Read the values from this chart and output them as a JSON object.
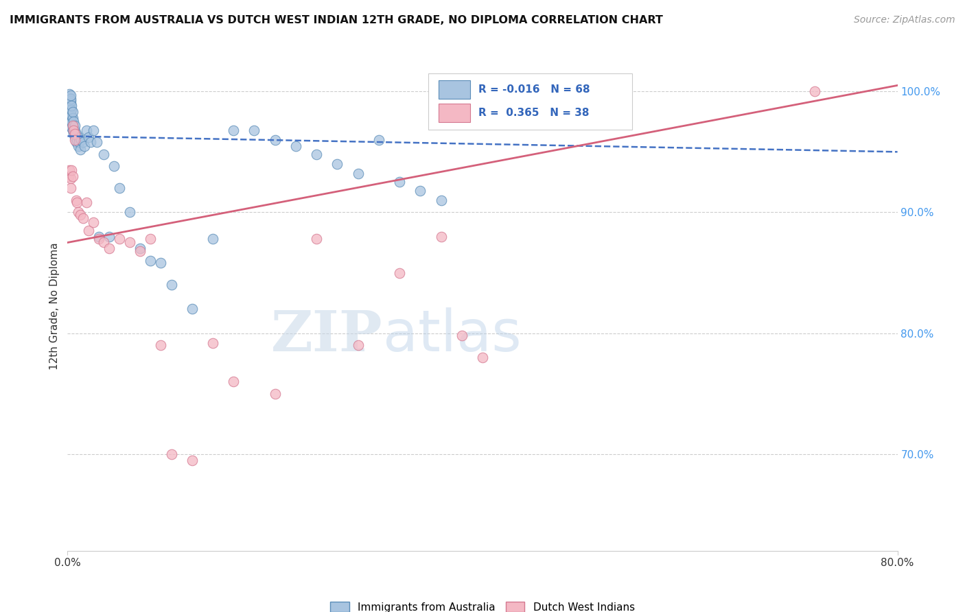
{
  "title": "IMMIGRANTS FROM AUSTRALIA VS DUTCH WEST INDIAN 12TH GRADE, NO DIPLOMA CORRELATION CHART",
  "source": "Source: ZipAtlas.com",
  "ylabel": "12th Grade, No Diploma",
  "yticks": [
    "100.0%",
    "90.0%",
    "80.0%",
    "70.0%"
  ],
  "ytick_vals": [
    1.0,
    0.9,
    0.8,
    0.7
  ],
  "xlim": [
    0.0,
    0.8
  ],
  "ylim": [
    0.62,
    1.025
  ],
  "watermark_zip": "ZIP",
  "watermark_atlas": "atlas",
  "legend_r_australia": "-0.016",
  "legend_n_australia": "68",
  "legend_r_dutch": "0.365",
  "legend_n_dutch": "38",
  "blue_color": "#a8c4e0",
  "blue_edge_color": "#5b8db8",
  "blue_line_color": "#4472c4",
  "pink_color": "#f4b8c4",
  "pink_edge_color": "#d47890",
  "pink_line_color": "#d4607a",
  "blue_scatter_x": [
    0.001,
    0.001,
    0.001,
    0.002,
    0.002,
    0.002,
    0.002,
    0.002,
    0.003,
    0.003,
    0.003,
    0.003,
    0.003,
    0.003,
    0.003,
    0.004,
    0.004,
    0.004,
    0.004,
    0.004,
    0.005,
    0.005,
    0.005,
    0.005,
    0.006,
    0.006,
    0.006,
    0.007,
    0.007,
    0.007,
    0.008,
    0.008,
    0.009,
    0.01,
    0.01,
    0.011,
    0.012,
    0.013,
    0.015,
    0.016,
    0.018,
    0.02,
    0.022,
    0.025,
    0.028,
    0.03,
    0.035,
    0.04,
    0.045,
    0.05,
    0.06,
    0.07,
    0.08,
    0.09,
    0.1,
    0.12,
    0.14,
    0.16,
    0.18,
    0.2,
    0.22,
    0.24,
    0.26,
    0.28,
    0.3,
    0.32,
    0.34,
    0.36
  ],
  "blue_scatter_y": [
    0.985,
    0.99,
    0.995,
    0.98,
    0.985,
    0.99,
    0.995,
    0.998,
    0.975,
    0.98,
    0.985,
    0.99,
    0.992,
    0.994,
    0.997,
    0.97,
    0.975,
    0.98,
    0.985,
    0.988,
    0.968,
    0.972,
    0.978,
    0.983,
    0.965,
    0.97,
    0.975,
    0.962,
    0.968,
    0.972,
    0.958,
    0.965,
    0.96,
    0.955,
    0.962,
    0.958,
    0.952,
    0.96,
    0.958,
    0.955,
    0.968,
    0.962,
    0.958,
    0.968,
    0.958,
    0.88,
    0.948,
    0.88,
    0.938,
    0.92,
    0.9,
    0.87,
    0.86,
    0.858,
    0.84,
    0.82,
    0.878,
    0.968,
    0.968,
    0.96,
    0.955,
    0.948,
    0.94,
    0.932,
    0.96,
    0.925,
    0.918,
    0.91
  ],
  "pink_scatter_x": [
    0.001,
    0.002,
    0.003,
    0.003,
    0.004,
    0.005,
    0.005,
    0.006,
    0.007,
    0.007,
    0.008,
    0.009,
    0.01,
    0.012,
    0.015,
    0.018,
    0.02,
    0.025,
    0.03,
    0.035,
    0.04,
    0.05,
    0.06,
    0.07,
    0.08,
    0.09,
    0.1,
    0.12,
    0.14,
    0.16,
    0.2,
    0.24,
    0.28,
    0.32,
    0.36,
    0.38,
    0.4,
    0.72
  ],
  "pink_scatter_y": [
    0.93,
    0.935,
    0.928,
    0.92,
    0.935,
    0.93,
    0.972,
    0.968,
    0.965,
    0.96,
    0.91,
    0.908,
    0.9,
    0.898,
    0.895,
    0.908,
    0.885,
    0.892,
    0.878,
    0.875,
    0.87,
    0.878,
    0.875,
    0.868,
    0.878,
    0.79,
    0.7,
    0.695,
    0.792,
    0.76,
    0.75,
    0.878,
    0.79,
    0.85,
    0.88,
    0.798,
    0.78,
    1.0
  ],
  "blue_trend_x": [
    0.0,
    0.8
  ],
  "blue_trend_y": [
    0.963,
    0.95
  ],
  "pink_trend_x": [
    0.0,
    0.8
  ],
  "pink_trend_y": [
    0.875,
    1.005
  ]
}
